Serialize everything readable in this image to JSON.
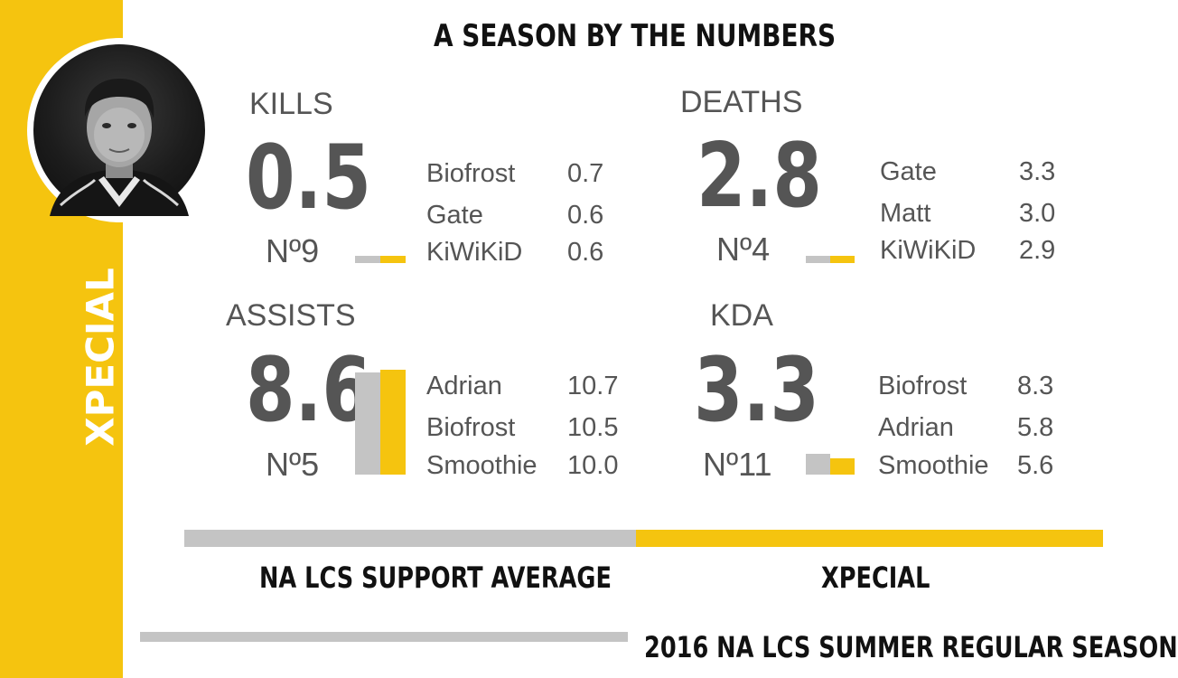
{
  "player_name": "XPECIAL",
  "title": "A SEASON BY THE NUMBERS",
  "colors": {
    "accent": "#f5c40f",
    "average": "#c4c4c4",
    "text": "#555555",
    "heading": "#111111"
  },
  "chart_data": [
    {
      "type": "bar",
      "stat": "KILLS",
      "value": "0.5",
      "rank": "Nº9",
      "player": 0.5,
      "average": 0.3,
      "leaders": [
        {
          "name": "Biofrost",
          "value": "0.7"
        },
        {
          "name": "Gate",
          "value": "0.6"
        },
        {
          "name": "KiWiKiD",
          "value": "0.6"
        }
      ]
    },
    {
      "type": "bar",
      "stat": "DEATHS",
      "value": "2.8",
      "rank": "Nº4",
      "player": 2.8,
      "average": 2.4,
      "leaders": [
        {
          "name": "Gate",
          "value": "3.3"
        },
        {
          "name": "Matt",
          "value": "3.0"
        },
        {
          "name": "KiWiKiD",
          "value": "2.9"
        }
      ]
    },
    {
      "type": "bar",
      "stat": "ASSISTS",
      "value": "8.6",
      "rank": "Nº5",
      "player": 8.6,
      "average": 8.4,
      "leaders": [
        {
          "name": "Adrian",
          "value": "10.7"
        },
        {
          "name": "Biofrost",
          "value": "10.5"
        },
        {
          "name": "Smoothie",
          "value": "10.0"
        }
      ]
    },
    {
      "type": "bar",
      "stat": "KDA",
      "value": "3.3",
      "rank": "Nº11",
      "player": 3.3,
      "average": 4.1,
      "leaders": [
        {
          "name": "Biofrost",
          "value": "8.3"
        },
        {
          "name": "Adrian",
          "value": "5.8"
        },
        {
          "name": "Smoothie",
          "value": "5.6"
        }
      ]
    }
  ],
  "legend": {
    "average_label": "NA LCS SUPPORT AVERAGE",
    "player_label": "XPECIAL"
  },
  "footer": "2016 NA LCS SUMMER REGULAR SEASON"
}
